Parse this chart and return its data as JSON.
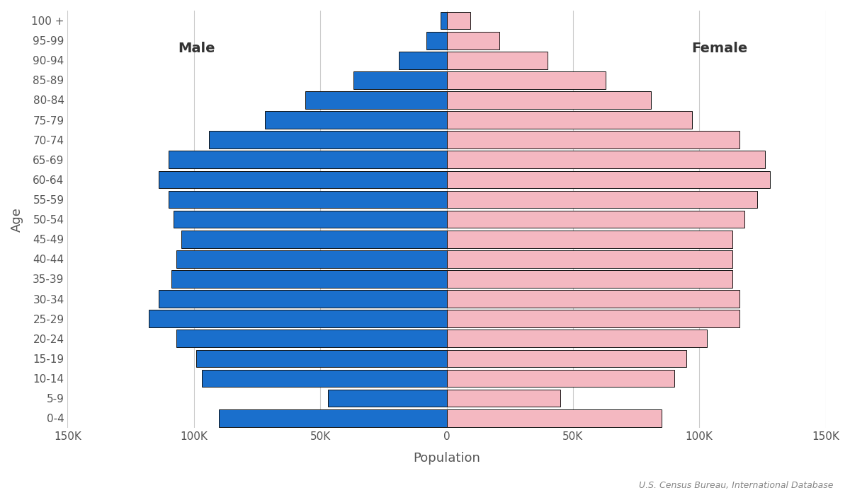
{
  "age_groups": [
    "0-4",
    "5-9",
    "10-14",
    "15-19",
    "20-24",
    "25-29",
    "30-34",
    "35-39",
    "40-44",
    "45-49",
    "50-54",
    "55-59",
    "60-64",
    "65-69",
    "70-74",
    "75-79",
    "80-84",
    "85-89",
    "90-94",
    "95-99",
    "100 +"
  ],
  "male": [
    90000,
    47000,
    97000,
    99000,
    107000,
    118000,
    114000,
    109000,
    107000,
    105000,
    108000,
    110000,
    114000,
    110000,
    94000,
    72000,
    56000,
    37000,
    19000,
    8000,
    2500
  ],
  "female": [
    85000,
    45000,
    90000,
    95000,
    103000,
    116000,
    116000,
    113000,
    113000,
    113000,
    118000,
    123000,
    128000,
    126000,
    116000,
    97000,
    81000,
    63000,
    40000,
    21000,
    9500
  ],
  "male_color": "#1a6fcc",
  "female_color": "#f4b8c1",
  "bar_edgecolor": "#111111",
  "bar_linewidth": 0.7,
  "background_color": "#ffffff",
  "xlabel": "Population",
  "ylabel": "Age",
  "xlim": 150000,
  "xtick_values": [
    -150000,
    -100000,
    -50000,
    0,
    50000,
    100000,
    150000
  ],
  "xtick_labels": [
    "150K",
    "100K",
    "50K",
    "0",
    "50K",
    "100K",
    "150K"
  ],
  "male_label": "Male",
  "female_label": "Female",
  "source_text": "U.S. Census Bureau, International Database",
  "grid_color": "#cccccc",
  "grid_linewidth": 0.8,
  "bar_height": 0.88,
  "label_fontsize": 14,
  "tick_fontsize": 11,
  "axis_label_fontsize": 13
}
